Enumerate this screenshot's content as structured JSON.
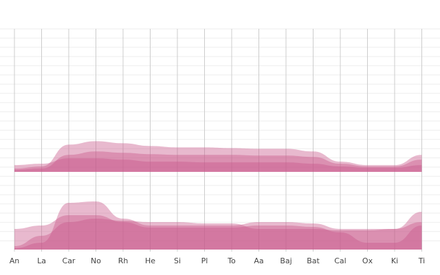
{
  "chart_data": [
    {
      "type": "area",
      "ylim": [
        0,
        210
      ],
      "series": [
        {
          "color": "#c9588a",
          "values": [
            5,
            8,
            40,
            45,
            42,
            38,
            36,
            36,
            35,
            34,
            34,
            30,
            15,
            10,
            10,
            25
          ]
        },
        {
          "color": "#c9588a",
          "values": [
            3,
            5,
            25,
            30,
            28,
            26,
            25,
            25,
            25,
            24,
            24,
            22,
            12,
            8,
            8,
            18
          ]
        },
        {
          "color": "#c9588a",
          "values": [
            10,
            12,
            20,
            20,
            18,
            15,
            15,
            14,
            14,
            14,
            14,
            12,
            8,
            6,
            6,
            10
          ]
        }
      ]
    },
    {
      "type": "area",
      "ylim": [
        0,
        108
      ],
      "categories": [
        "An",
        "La",
        "Car",
        "No",
        "Rh",
        "He",
        "Si",
        "Pl",
        "To",
        "Aa",
        "Baj",
        "Bat",
        "Cal",
        "Ox",
        "Ki",
        "Ti"
      ],
      "series": [
        {
          "color": "#c9588a",
          "values": [
            2,
            10,
            68,
            70,
            45,
            35,
            35,
            35,
            35,
            40,
            40,
            38,
            30,
            30,
            30,
            55
          ]
        },
        {
          "color": "#c9588a",
          "values": [
            30,
            35,
            50,
            50,
            40,
            32,
            32,
            32,
            32,
            35,
            35,
            33,
            25,
            10,
            10,
            35
          ]
        },
        {
          "color": "#c9588a",
          "values": [
            5,
            20,
            40,
            45,
            42,
            40,
            40,
            38,
            38,
            30,
            30,
            30,
            28,
            28,
            30,
            40
          ]
        }
      ]
    }
  ]
}
